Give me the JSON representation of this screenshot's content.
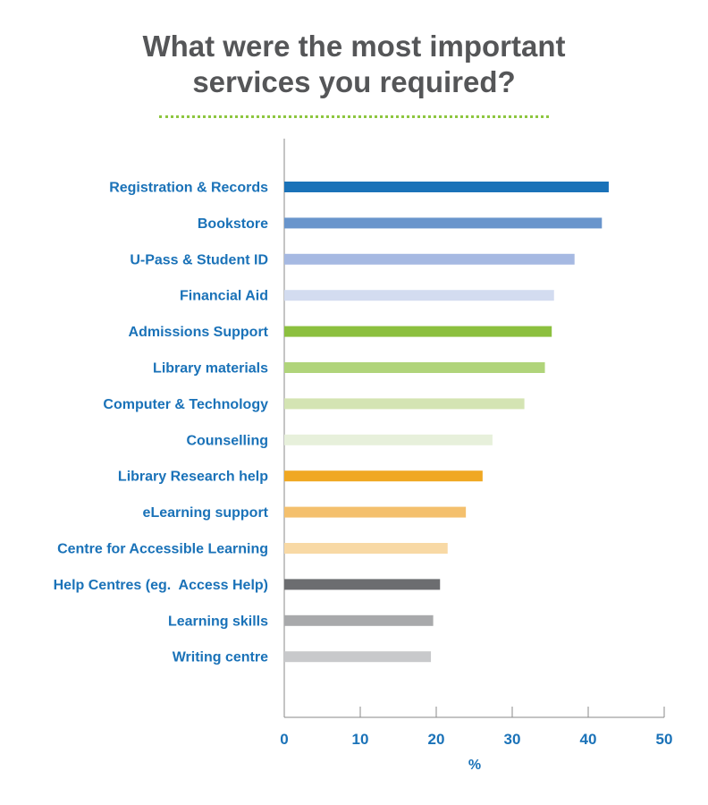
{
  "title_lines": [
    "What were the most important",
    "services you required?"
  ],
  "colors": {
    "title": "#555658",
    "labels": "#1a72b8",
    "divider": "#8dc63f",
    "axis": "#8a8a8a"
  },
  "chart_data": {
    "type": "bar",
    "orientation": "horizontal",
    "title": "What were the most important services you required?",
    "xlabel": "%",
    "ylabel": "",
    "xlim": [
      0,
      50
    ],
    "xticks": [
      0,
      10,
      20,
      30,
      40,
      50
    ],
    "grid": false,
    "categories": [
      "Registration & Records",
      "Bookstore",
      "U-Pass & Student ID",
      "Financial Aid",
      "Admissions Support",
      "Library materials",
      "Computer & Technology",
      "Counselling",
      "Library Research help",
      "eLearning support",
      "Centre for Accessible Learning",
      "Help Centres (eg.  Access Help)",
      "Learning skills",
      "Writing centre"
    ],
    "values": [
      42.7,
      41.8,
      38.2,
      35.5,
      35.2,
      34.3,
      31.6,
      27.4,
      26.1,
      23.9,
      21.5,
      20.5,
      19.6,
      19.3
    ],
    "bar_colors": [
      "#1a72b8",
      "#6995cc",
      "#a6b9e2",
      "#d3dcf0",
      "#8cc03f",
      "#b0d47a",
      "#d4e4b3",
      "#e7f0db",
      "#f0a823",
      "#f4c06d",
      "#f8d9a5",
      "#6c6d70",
      "#a8a9ab",
      "#c8c9cb"
    ]
  }
}
